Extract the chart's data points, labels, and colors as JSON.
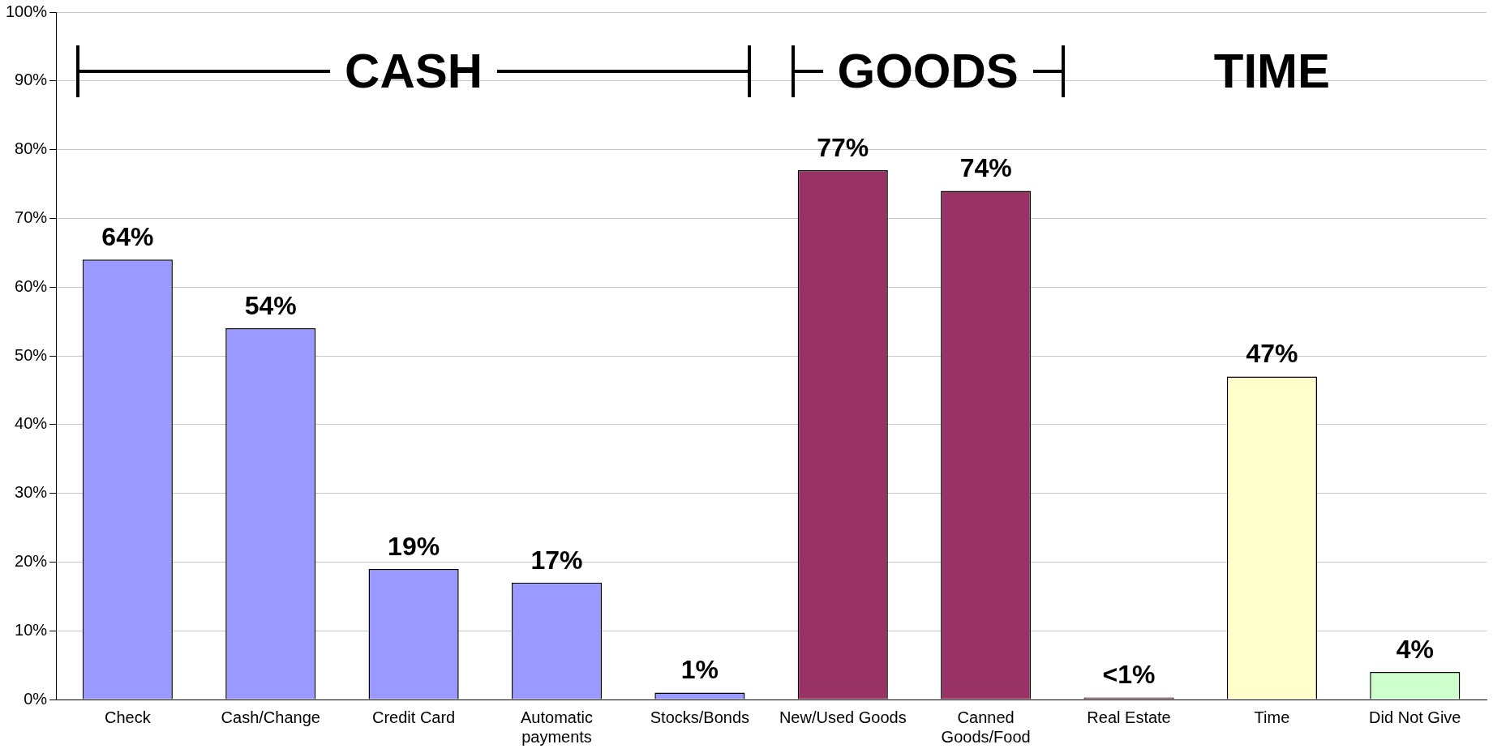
{
  "chart_data": {
    "type": "bar",
    "categories": [
      "Check",
      "Cash/Change",
      "Credit Card",
      "Automatic payments",
      "Stocks/Bonds",
      "New/Used Goods",
      "Canned Goods/Food",
      "Real Estate",
      "Time",
      "Did Not Give"
    ],
    "values": [
      64,
      54,
      19,
      17,
      1,
      77,
      74,
      0.3,
      47,
      4
    ],
    "colors": [
      "#9999ff",
      "#9999ff",
      "#9999ff",
      "#9999ff",
      "#9999ff",
      "#993366",
      "#993366",
      "#993366",
      "#ffffcc",
      "#ccffcc"
    ],
    "value_labels": [
      "64%",
      "54%",
      "19%",
      "17%",
      "1%",
      "77%",
      "74%",
      "<1%",
      "47%",
      "4%"
    ],
    "ylim": [
      0,
      100
    ],
    "yticks": [
      {
        "value": 0,
        "label": "0%"
      },
      {
        "value": 10,
        "label": "10%"
      },
      {
        "value": 20,
        "label": "20%"
      },
      {
        "value": 30,
        "label": "30%"
      },
      {
        "value": 40,
        "label": "40%"
      },
      {
        "value": 50,
        "label": "50%"
      },
      {
        "value": 60,
        "label": "60%"
      },
      {
        "value": 70,
        "label": "70%"
      },
      {
        "value": 80,
        "label": "80%"
      },
      {
        "value": 90,
        "label": "90%"
      },
      {
        "value": 100,
        "label": "100%"
      }
    ],
    "grid": "y",
    "legend": false,
    "annotations": [
      "CASH",
      "GOODS",
      "TIME"
    ]
  }
}
